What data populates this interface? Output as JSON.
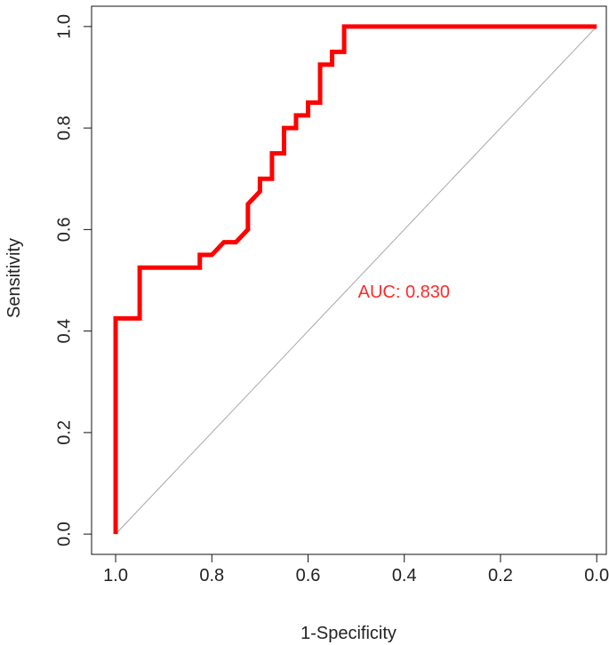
{
  "chart_data": {
    "type": "line",
    "title": "",
    "xlabel": "1-Specificity",
    "ylabel": "Sensitivity",
    "x_reversed": true,
    "xlim": [
      1.05,
      -0.02
    ],
    "ylim": [
      -0.04,
      1.04
    ],
    "grid": false,
    "legend": "none",
    "x_ticks": [
      {
        "value": 1.0,
        "label": "1.0"
      },
      {
        "value": 0.8,
        "label": "0.8"
      },
      {
        "value": 0.6,
        "label": "0.6"
      },
      {
        "value": 0.4,
        "label": "0.4"
      },
      {
        "value": 0.2,
        "label": "0.2"
      },
      {
        "value": 0.0,
        "label": "0.0"
      }
    ],
    "y_ticks": [
      {
        "value": 0.0,
        "label": "0.0"
      },
      {
        "value": 0.2,
        "label": "0.2"
      },
      {
        "value": 0.4,
        "label": "0.4"
      },
      {
        "value": 0.6,
        "label": "0.6"
      },
      {
        "value": 0.8,
        "label": "0.8"
      },
      {
        "value": 1.0,
        "label": "1.0"
      }
    ],
    "reference_line": {
      "color": "#a8a8a8",
      "points": [
        {
          "x": 1.0,
          "y": 0.0
        },
        {
          "x": 0.0,
          "y": 1.0
        }
      ]
    },
    "series": [
      {
        "color": "#ff0000",
        "points": [
          {
            "x": 1.0,
            "y": 0.0
          },
          {
            "x": 1.0,
            "y": 0.425
          },
          {
            "x": 0.95,
            "y": 0.425
          },
          {
            "x": 0.95,
            "y": 0.525
          },
          {
            "x": 0.825,
            "y": 0.525
          },
          {
            "x": 0.825,
            "y": 0.55
          },
          {
            "x": 0.8,
            "y": 0.55
          },
          {
            "x": 0.775,
            "y": 0.575
          },
          {
            "x": 0.75,
            "y": 0.575
          },
          {
            "x": 0.725,
            "y": 0.6
          },
          {
            "x": 0.725,
            "y": 0.65
          },
          {
            "x": 0.7,
            "y": 0.675
          },
          {
            "x": 0.7,
            "y": 0.7
          },
          {
            "x": 0.675,
            "y": 0.7
          },
          {
            "x": 0.675,
            "y": 0.75
          },
          {
            "x": 0.65,
            "y": 0.75
          },
          {
            "x": 0.65,
            "y": 0.8
          },
          {
            "x": 0.625,
            "y": 0.8
          },
          {
            "x": 0.625,
            "y": 0.825
          },
          {
            "x": 0.6,
            "y": 0.825
          },
          {
            "x": 0.6,
            "y": 0.85
          },
          {
            "x": 0.575,
            "y": 0.85
          },
          {
            "x": 0.575,
            "y": 0.925
          },
          {
            "x": 0.55,
            "y": 0.925
          },
          {
            "x": 0.55,
            "y": 0.95
          },
          {
            "x": 0.525,
            "y": 0.95
          },
          {
            "x": 0.525,
            "y": 1.0
          },
          {
            "x": 0.0,
            "y": 1.0
          }
        ]
      }
    ],
    "annotations": [
      {
        "text": "AUC: 0.830",
        "x": 0.5,
        "y": 0.48,
        "color": "#ff2a2a"
      }
    ]
  }
}
